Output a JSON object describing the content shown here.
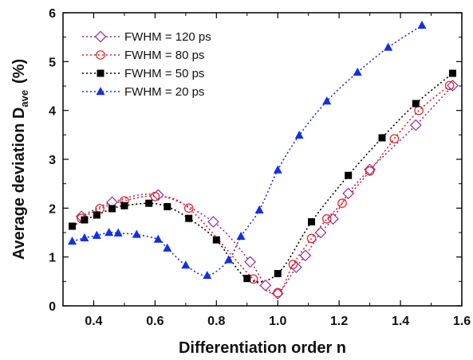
{
  "chart_data": {
    "type": "line",
    "xlabel": "Differentiation order n",
    "ylabel": {
      "main": "Average deviation D",
      "subscript": "ave",
      "suffix": "(%)"
    },
    "xlim": [
      0.3,
      1.6
    ],
    "ylim": [
      0,
      6
    ],
    "xticks": [
      "0.4",
      "0.6",
      "0.8",
      "1.0",
      "1.2",
      "1.4",
      "1.6"
    ],
    "yticks": [
      "0",
      "1",
      "2",
      "3",
      "4",
      "5",
      "6"
    ],
    "xtick_values": [
      0.4,
      0.6,
      0.8,
      1.0,
      1.2,
      1.4,
      1.6
    ],
    "ytick_values": [
      0,
      1,
      2,
      3,
      4,
      5,
      6
    ],
    "grid": false,
    "legend_position": "top-left",
    "series": [
      {
        "name": "FWHM = 120 ps",
        "color": "#8b2f8f",
        "marker": "diamond-open",
        "points": [
          [
            0.36,
            1.83
          ],
          [
            0.46,
            2.12
          ],
          [
            0.61,
            2.27
          ],
          [
            0.79,
            1.72
          ],
          [
            0.91,
            0.9
          ],
          [
            0.96,
            0.42
          ],
          [
            1.0,
            0.25
          ],
          [
            1.06,
            0.79
          ],
          [
            1.09,
            1.03
          ],
          [
            1.14,
            1.5
          ],
          [
            1.18,
            1.78
          ],
          [
            1.23,
            2.3
          ],
          [
            1.3,
            2.79
          ],
          [
            1.45,
            3.7
          ],
          [
            1.57,
            4.51
          ]
        ]
      },
      {
        "name": "FWHM = 80 ps",
        "color": "#e02020",
        "marker": "circle-open",
        "points": [
          [
            0.36,
            1.79
          ],
          [
            0.42,
            1.99
          ],
          [
            0.5,
            2.15
          ],
          [
            0.6,
            2.24
          ],
          [
            0.71,
            2.0
          ],
          [
            0.92,
            0.55
          ],
          [
            1.0,
            0.27
          ],
          [
            1.05,
            0.85
          ],
          [
            1.11,
            1.38
          ],
          [
            1.16,
            1.78
          ],
          [
            1.21,
            2.1
          ],
          [
            1.3,
            2.76
          ],
          [
            1.38,
            3.42
          ],
          [
            1.46,
            4.0
          ],
          [
            1.56,
            4.51
          ]
        ]
      },
      {
        "name": "FWHM = 50 ps",
        "color": "#000000",
        "marker": "square-filled",
        "points": [
          [
            0.33,
            1.63
          ],
          [
            0.37,
            1.76
          ],
          [
            0.41,
            1.86
          ],
          [
            0.46,
            1.99
          ],
          [
            0.5,
            2.05
          ],
          [
            0.58,
            2.1
          ],
          [
            0.64,
            2.03
          ],
          [
            0.71,
            1.79
          ],
          [
            0.8,
            1.35
          ],
          [
            0.9,
            0.56
          ],
          [
            1.0,
            0.66
          ],
          [
            1.11,
            1.72
          ],
          [
            1.23,
            2.67
          ],
          [
            1.34,
            3.44
          ],
          [
            1.45,
            4.14
          ],
          [
            1.57,
            4.76
          ]
        ]
      },
      {
        "name": "FWHM = 20 ps",
        "color": "#1530e0",
        "marker": "triangle-filled",
        "points": [
          [
            0.33,
            1.32
          ],
          [
            0.37,
            1.39
          ],
          [
            0.41,
            1.44
          ],
          [
            0.45,
            1.5
          ],
          [
            0.48,
            1.49
          ],
          [
            0.54,
            1.46
          ],
          [
            0.61,
            1.36
          ],
          [
            0.64,
            1.18
          ],
          [
            0.7,
            0.83
          ],
          [
            0.77,
            0.62
          ],
          [
            0.84,
            0.94
          ],
          [
            0.88,
            1.42
          ],
          [
            0.94,
            1.96
          ],
          [
            1.0,
            2.78
          ],
          [
            1.07,
            3.49
          ],
          [
            1.16,
            4.19
          ],
          [
            1.26,
            4.78
          ],
          [
            1.36,
            5.29
          ],
          [
            1.47,
            5.74
          ]
        ]
      }
    ]
  }
}
